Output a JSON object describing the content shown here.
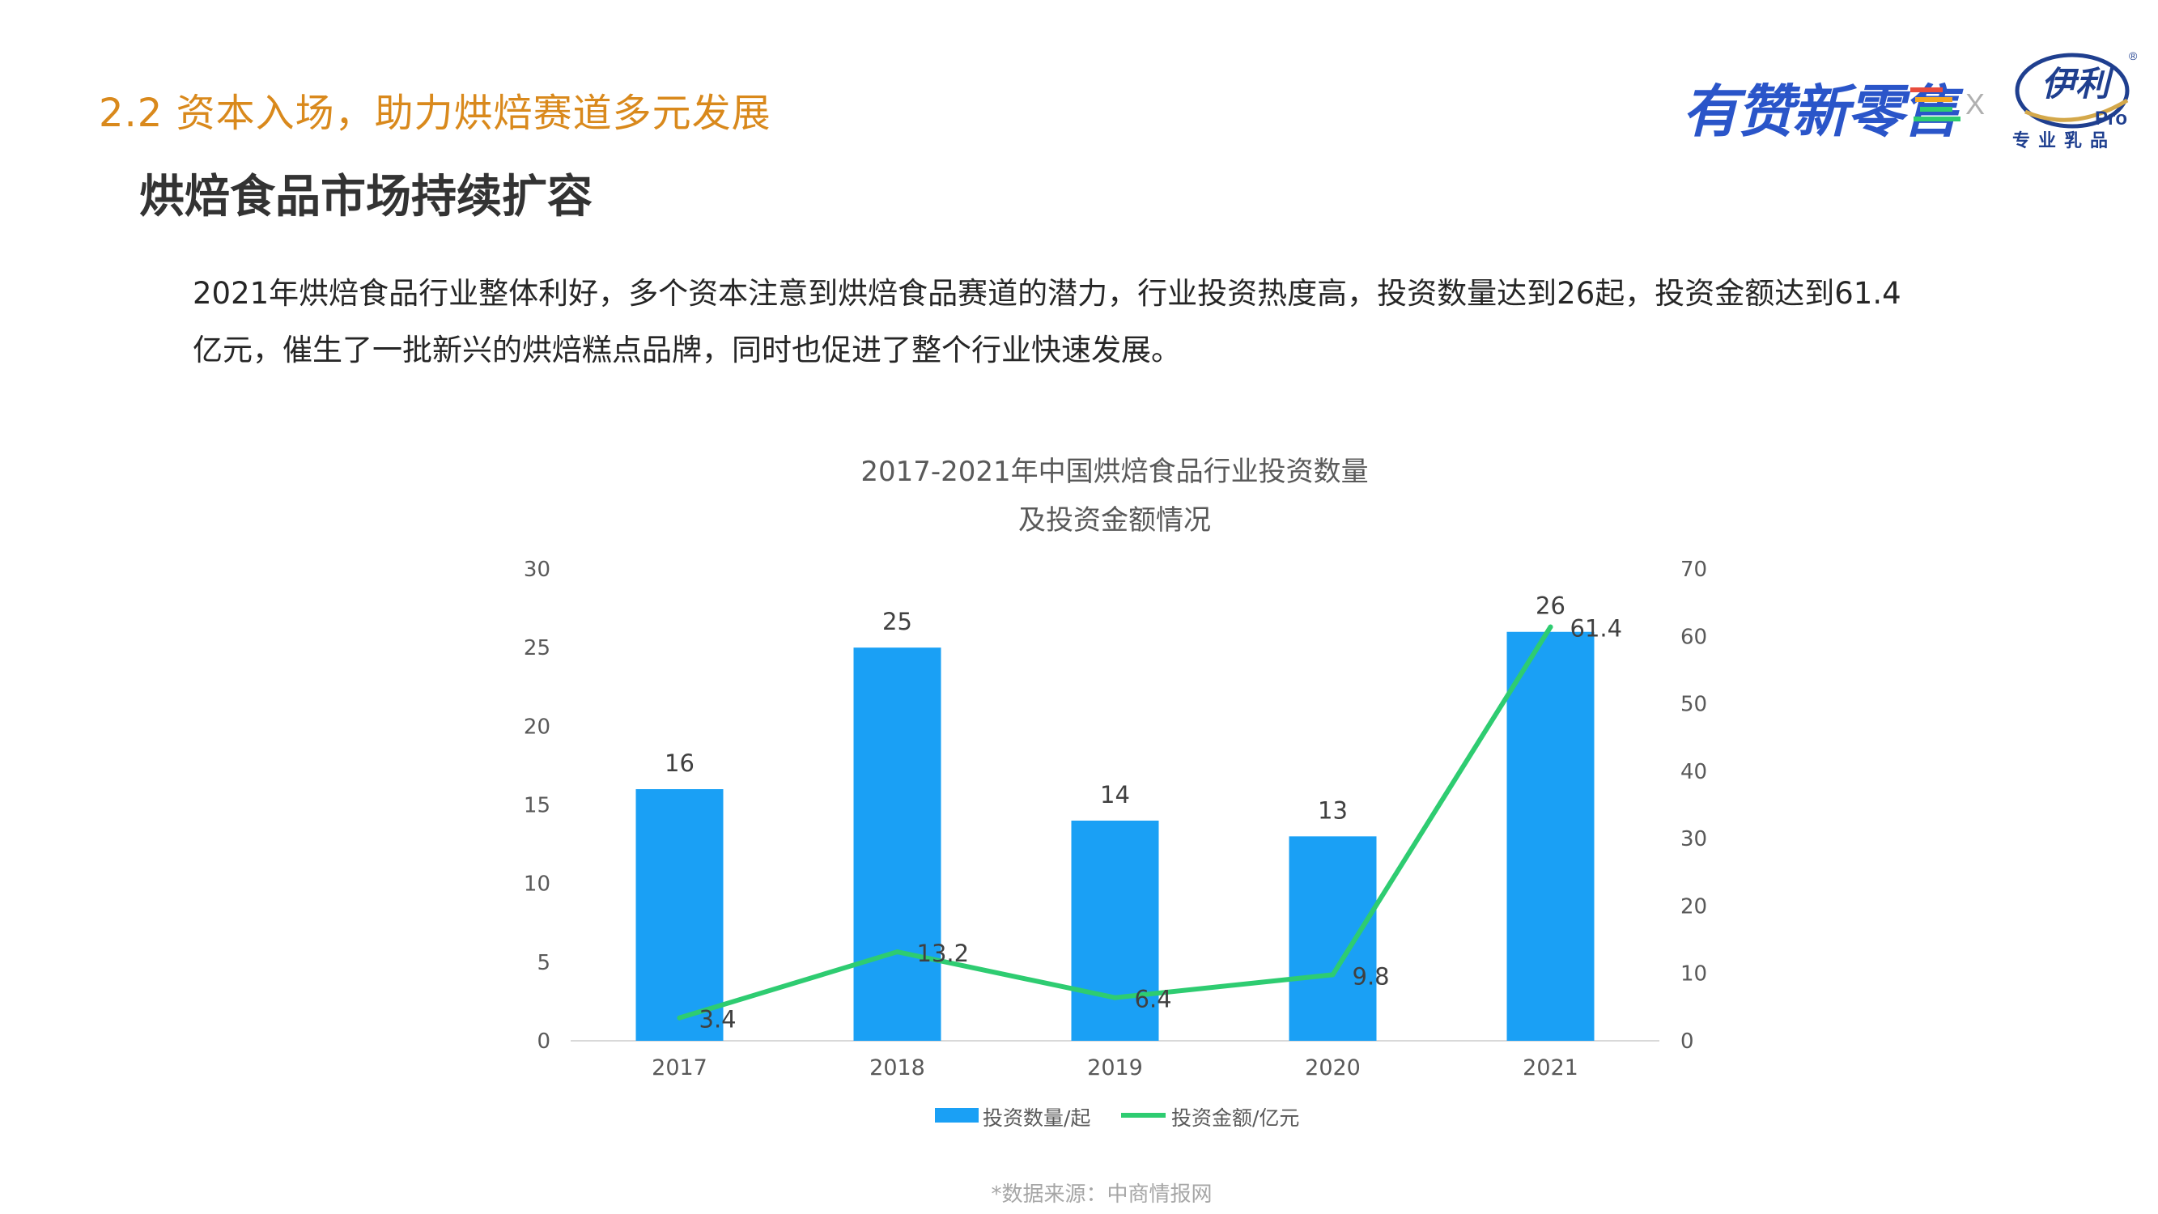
{
  "section_title": "2.2 资本入场，助力烘焙赛道多元发展",
  "headline": "烘焙食品市场持续扩容",
  "body_text": "2021年烘焙食品行业整体利好，多个资本注意到烘焙食品赛道的潜力，行业投资热度高，投资数量达到26起，投资金额达到61.4亿元，催生了一批新兴的烘焙糕点品牌，同时也促进了整个行业快速发展。",
  "logos": {
    "youzan": "有赞新零售",
    "separator": "X",
    "yili": "伊利",
    "yili_pro": "Pro",
    "yili_registered": "®",
    "yili_sub": "专业乳品"
  },
  "footer_source": "*数据来源：中商情报网",
  "colors": {
    "accent_title": "#d9891c",
    "bar": "#1aa0f5",
    "line": "#2ecc71",
    "youzan_blue": "#2a55c9",
    "yili_blue": "#1f3f8f"
  },
  "chart_data": {
    "type": "bar",
    "title_lines": [
      "2017-2021年中国烘焙食品行业投资数量",
      "及投资金额情况"
    ],
    "categories": [
      "2017",
      "2018",
      "2019",
      "2020",
      "2021"
    ],
    "series": [
      {
        "name": "投资数量/起",
        "type": "bar",
        "axis": "left",
        "values": [
          16,
          25,
          14,
          13,
          26
        ]
      },
      {
        "name": "投资金额/亿元",
        "type": "line",
        "axis": "right",
        "values": [
          3.4,
          13.2,
          6.4,
          9.8,
          61.4
        ]
      }
    ],
    "ylim_left": [
      0,
      30
    ],
    "yticks_left": [
      0,
      5,
      10,
      15,
      20,
      25,
      30
    ],
    "ylim_right": [
      0,
      70
    ],
    "yticks_right": [
      0,
      10,
      20,
      30,
      40,
      50,
      60,
      70
    ],
    "grid": false,
    "legend_position": "bottom",
    "data_labels": true
  }
}
